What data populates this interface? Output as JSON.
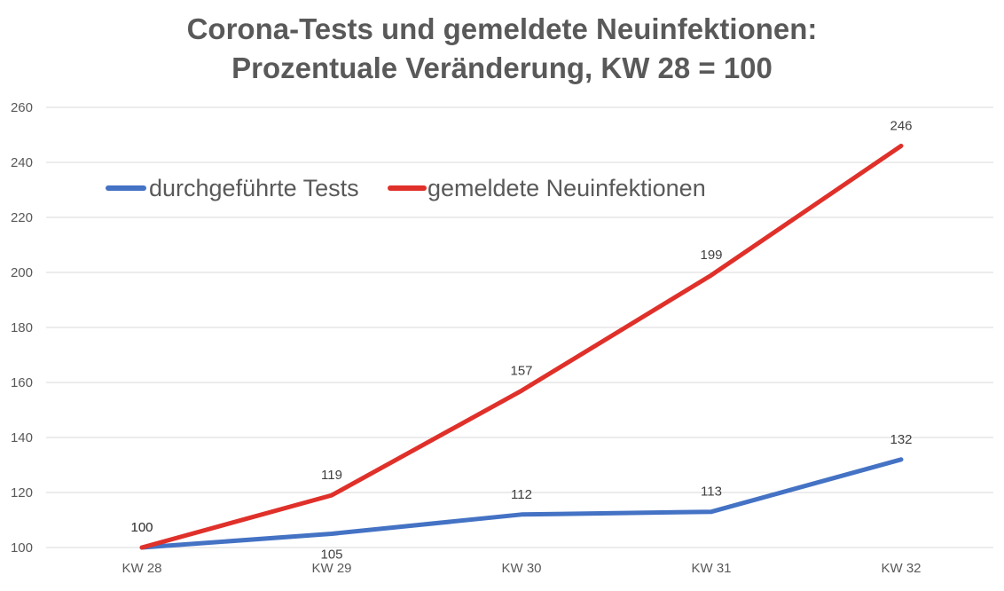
{
  "chart_data": {
    "type": "line",
    "title": "Corona-Tests und gemeldete Neuinfektionen:",
    "subtitle": "Prozentuale Veränderung, KW 28 = 100",
    "categories": [
      "KW 28",
      "KW 29",
      "KW 30",
      "KW 31",
      "KW 32"
    ],
    "series": [
      {
        "name": "durchgeführte Tests",
        "color": "#4472c4",
        "values": [
          100,
          105,
          112,
          113,
          132
        ]
      },
      {
        "name": "gemeldete Neuinfektionen",
        "color": "#e0302a",
        "values": [
          100,
          119,
          157,
          199,
          246
        ]
      }
    ],
    "ylim": [
      100,
      260
    ],
    "yticks": [
      100,
      120,
      140,
      160,
      180,
      200,
      220,
      240,
      260
    ],
    "grid": true,
    "legend_position": "top-left"
  }
}
